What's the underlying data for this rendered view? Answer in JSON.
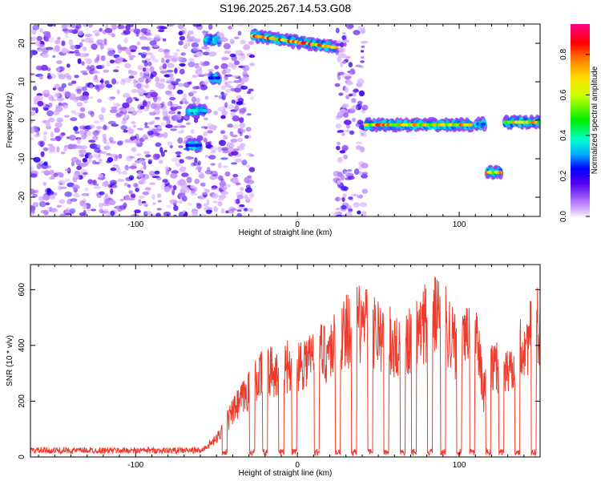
{
  "title": "S196.2025.267.14.53.G08",
  "chart_data": [
    {
      "type": "heatmap",
      "xlabel": "Height of straight line (km)",
      "ylabel": "Frequency (Hz)",
      "xlim": [
        -165,
        150
      ],
      "ylim": [
        -25,
        25
      ],
      "xticks": [
        -100,
        0,
        100
      ],
      "yticks": [
        -20,
        -10,
        0,
        10,
        20
      ],
      "colorbar": {
        "label": "Normalized spectral amplitude",
        "range": [
          0,
          0.95
        ],
        "ticks": [
          0.0,
          0.2,
          0.4,
          0.6,
          0.8
        ]
      },
      "features": [
        {
          "x0": -165,
          "x1": -50,
          "kind": "noise"
        },
        {
          "x0": -68,
          "x1": -57,
          "f": 2.5,
          "peak": 0.45
        },
        {
          "x0": -68,
          "x1": -60,
          "f": -6.5,
          "peak": 0.35
        },
        {
          "x0": -57,
          "x1": -48,
          "f": 21,
          "peak": 0.45
        },
        {
          "x0": -54,
          "x1": -48,
          "f": 11,
          "peak": 0.4
        },
        {
          "x0": -48,
          "x1": -28,
          "kind": "noise"
        },
        {
          "x0": -28,
          "x1": 24,
          "f": 22,
          "slope": -0.06,
          "peak": 0.95
        },
        {
          "x0": 24,
          "x1": 42,
          "kind": "noise"
        },
        {
          "x0": 42,
          "x1": 108,
          "f": -1.2,
          "peak": 0.9
        },
        {
          "x0": 110,
          "x1": 116,
          "f": -1,
          "peak": 0.4
        },
        {
          "x0": 117,
          "x1": 126,
          "f": -13.5,
          "peak": 0.85
        },
        {
          "x0": 128,
          "x1": 150,
          "f": -0.5,
          "peak": 0.85
        }
      ]
    },
    {
      "type": "line",
      "xlabel": "Height of straight line (km)",
      "ylabel": "SNR (10 * v/v)",
      "xlim": [
        -165,
        150
      ],
      "ylim": [
        0,
        690
      ],
      "xticks": [
        -100,
        0,
        100
      ],
      "yticks": [
        0,
        200,
        400,
        600
      ],
      "color": "#ef3b2c",
      "envelope": [
        [
          -165,
          25
        ],
        [
          -60,
          25
        ],
        [
          -50,
          80
        ],
        [
          -40,
          200
        ],
        [
          -30,
          300
        ],
        [
          -20,
          380
        ],
        [
          -10,
          400
        ],
        [
          0,
          420
        ],
        [
          10,
          450
        ],
        [
          20,
          480
        ],
        [
          30,
          560
        ],
        [
          40,
          600
        ],
        [
          50,
          560
        ],
        [
          60,
          500
        ],
        [
          70,
          520
        ],
        [
          80,
          600
        ],
        [
          90,
          640
        ],
        [
          100,
          450
        ],
        [
          110,
          600
        ],
        [
          115,
          280
        ],
        [
          120,
          400
        ],
        [
          130,
          380
        ],
        [
          140,
          500
        ],
        [
          150,
          600
        ]
      ],
      "dips": [
        -45,
        -28,
        -20,
        -10,
        -2,
        12,
        25,
        35,
        45,
        55,
        65,
        72,
        82,
        90,
        100,
        108,
        118,
        126,
        136,
        146
      ]
    }
  ]
}
